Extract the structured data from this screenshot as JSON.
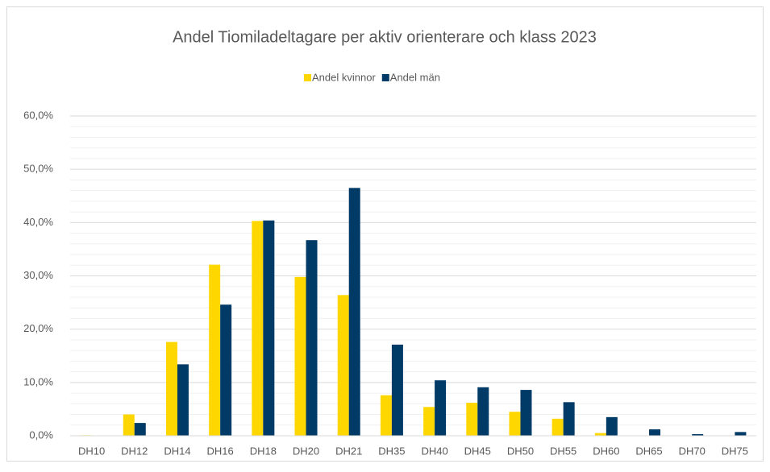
{
  "chart_data": {
    "type": "bar",
    "title": "Andel Tiomiladeltagare per aktiv orienterare och klass 2023",
    "categories": [
      "DH10",
      "DH12",
      "DH14",
      "DH16",
      "DH18",
      "DH20",
      "DH21",
      "DH35",
      "DH40",
      "DH45",
      "DH50",
      "DH55",
      "DH60",
      "DH65",
      "DH70",
      "DH75"
    ],
    "series": [
      {
        "name": "Andel kvinnor",
        "color": "#ffd700",
        "values": [
          0.1,
          4.0,
          17.6,
          32.1,
          40.3,
          29.8,
          26.4,
          7.6,
          5.4,
          6.2,
          4.5,
          3.2,
          0.5,
          0,
          0,
          0
        ]
      },
      {
        "name": "Andel män",
        "color": "#003a66",
        "values": [
          0,
          2.4,
          13.4,
          24.6,
          40.4,
          36.7,
          46.5,
          17.1,
          10.4,
          9.1,
          8.6,
          6.3,
          3.5,
          1.2,
          0.3,
          0.7
        ]
      }
    ],
    "ylim": [
      0,
      60
    ],
    "yticks": [
      {
        "value": 0,
        "label": "0,0%"
      },
      {
        "value": 10,
        "label": "10,0%"
      },
      {
        "value": 20,
        "label": "20,0%"
      },
      {
        "value": 30,
        "label": "30,0%"
      },
      {
        "value": 40,
        "label": "40,0%"
      },
      {
        "value": 50,
        "label": "50,0%"
      },
      {
        "value": 60,
        "label": "60,0%"
      }
    ],
    "minor_yticks": [
      2,
      4,
      6,
      8,
      12,
      14,
      16,
      18,
      22,
      24,
      26,
      28,
      32,
      34,
      36,
      38,
      42,
      44,
      46,
      48,
      52,
      54,
      56,
      58
    ],
    "grid": true,
    "legend": "top"
  }
}
